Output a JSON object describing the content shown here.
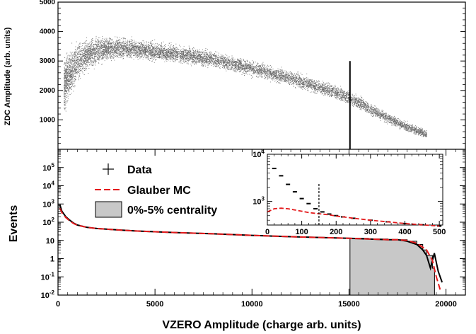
{
  "chart_data": [
    {
      "type": "scatter",
      "xlim": [
        0,
        21000
      ],
      "ylim": [
        0,
        5000
      ],
      "ylabel": "ZDC Amplitude (arb. units)",
      "yticks": [
        1000,
        2000,
        3000,
        4000,
        5000
      ],
      "ytick_labels": [
        "1000",
        "2000",
        "3000",
        "4000",
        "5000"
      ],
      "band": {
        "x": [
          300,
          1000,
          2000,
          3000,
          4000,
          6000,
          8000,
          10000,
          12000,
          14000,
          15000,
          16000,
          17000,
          18000,
          19000
        ],
        "y_center": [
          2200,
          3000,
          3350,
          3450,
          3400,
          3250,
          3050,
          2750,
          2400,
          2000,
          1750,
          1400,
          1050,
          750,
          500
        ],
        "y_halfwidth": [
          1400,
          1000,
          700,
          550,
          500,
          450,
          420,
          400,
          380,
          380,
          370,
          330,
          300,
          260,
          220
        ]
      },
      "vertical_line": {
        "x": 15050,
        "y": [
          0,
          3000
        ]
      }
    },
    {
      "type": "line",
      "log_y": true,
      "xlim": [
        0,
        21000
      ],
      "ylim_exp": [
        -2,
        6
      ],
      "xlabel": "VZERO Amplitude (charge arb. units)",
      "ylabel": "Events",
      "xticks": [
        0,
        5000,
        10000,
        15000,
        20000
      ],
      "xtick_labels": [
        "0",
        "5000",
        "10000",
        "15000",
        "20000"
      ],
      "ytick_labels": [
        "10-2",
        "10-1",
        "1",
        "10",
        "102",
        "103",
        "104",
        "105"
      ],
      "series": [
        {
          "name": "Data",
          "x": [
            100,
            200,
            400,
            600,
            800,
            1000,
            1500,
            2000,
            3000,
            4000,
            5000,
            6000,
            8000,
            10000,
            12000,
            14000,
            15000,
            16000,
            17000,
            17500,
            18000,
            18500,
            18800,
            19000,
            19200,
            19400,
            19600,
            19800
          ],
          "y": [
            900,
            400,
            200,
            130,
            90,
            70,
            52,
            45,
            38,
            33,
            30,
            27,
            23,
            19,
            16,
            14,
            13,
            12,
            11,
            11,
            9,
            6,
            3,
            1.5,
            0.3,
            2,
            0.2,
            0.05
          ]
        },
        {
          "name": "Glauber MC",
          "x": [
            100,
            200,
            400,
            600,
            800,
            1000,
            1500,
            2000,
            3000,
            4000,
            5000,
            6000,
            8000,
            10000,
            12000,
            14000,
            15000,
            16000,
            17000,
            17500,
            18000,
            18500,
            19000,
            19300,
            19500,
            19700
          ],
          "y": [
            600,
            330,
            180,
            120,
            85,
            68,
            52,
            45,
            38,
            33,
            30,
            27,
            23,
            19,
            16,
            14,
            13,
            12,
            11,
            11,
            10,
            7,
            3,
            0.8,
            0.1,
            0.02
          ]
        },
        {
          "name": "0%-5% centrality",
          "fill": true,
          "x": [
            15050,
            16000,
            17000,
            17500,
            18000,
            18500,
            18800,
            19000,
            19300
          ],
          "y": [
            13,
            12,
            11,
            11,
            9,
            6,
            3,
            1.5,
            0.3
          ]
        }
      ]
    },
    {
      "type": "line",
      "inset": true,
      "log_y": true,
      "xlim": [
        0,
        510
      ],
      "ylim_exp": [
        2.5,
        4
      ],
      "xticks": [
        0,
        100,
        200,
        300,
        400,
        500
      ],
      "xtick_labels": [
        "0",
        "100",
        "200",
        "300",
        "400",
        "500"
      ],
      "ytick_labels": [
        "103",
        "104"
      ],
      "series": [
        {
          "name": "Data",
          "x": [
            20,
            40,
            60,
            80,
            100,
            120,
            140,
            160,
            180,
            200,
            220,
            250,
            300,
            350,
            400,
            450,
            500
          ],
          "y": [
            5000,
            3500,
            2300,
            1600,
            1150,
            900,
            700,
            600,
            540,
            500,
            470,
            440,
            400,
            370,
            340,
            320,
            300
          ]
        },
        {
          "name": "Glauber MC",
          "x": [
            0,
            20,
            40,
            60,
            80,
            100,
            120,
            140,
            160,
            180,
            200,
            220,
            250,
            300,
            350,
            400,
            450,
            500
          ],
          "y": [
            600,
            700,
            720,
            700,
            660,
            620,
            580,
            560,
            540,
            520,
            490,
            470,
            440,
            400,
            370,
            340,
            320,
            300
          ]
        }
      ],
      "vertical_line": {
        "x": 150
      }
    }
  ],
  "legend": [
    {
      "label": "Data",
      "style": "marker",
      "color": "#000000"
    },
    {
      "label": "Glauber MC",
      "style": "dashed",
      "color": "#e41a1c"
    },
    {
      "label": "0%-5% centrality",
      "style": "fill",
      "color": "#c8c8c8"
    }
  ],
  "colors": {
    "scatter": "#6b6b6b",
    "data": "#000000",
    "mc": "#e41a1c",
    "fill": "#c8c8c8"
  }
}
